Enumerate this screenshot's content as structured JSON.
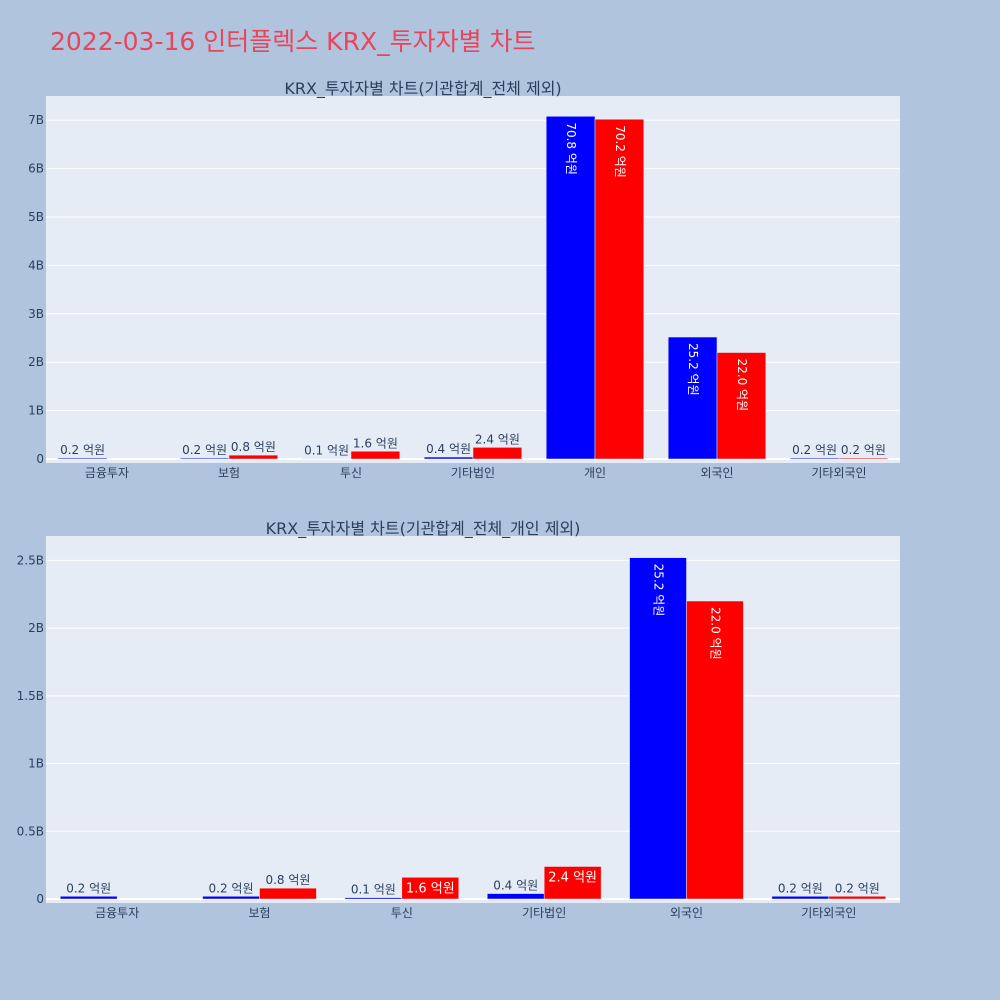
{
  "page_title": "2022-03-16 인터플렉스 KRX_투자자별 차트",
  "colors": {
    "buy": "#0000ff",
    "sell": "#ff0000",
    "background": "#b0c4de",
    "plot_bg": "#e5ecf6"
  },
  "chart_data": [
    {
      "type": "bar",
      "title": "KRX_투자자별 차트(기관합계_전체 제외)",
      "categories": [
        "금융투자",
        "보험",
        "투신",
        "기타법인",
        "개인",
        "외국인",
        "기타외국인"
      ],
      "series": [
        {
          "color": "#0000ff",
          "values": [
            20000000,
            20000000,
            10000000,
            40000000,
            7080000000,
            2520000000,
            20000000
          ],
          "labels": [
            "0.2 억원",
            "0.2 억원",
            "0.1 억원",
            "0.4 억원",
            "70.8 억원",
            "25.2 억원",
            "0.2 억원"
          ]
        },
        {
          "color": "#ff0000",
          "values": [
            0,
            80000000,
            160000000,
            240000000,
            7020000000,
            2200000000,
            20000000
          ],
          "labels": [
            "",
            "0.8 억원",
            "1.6 억원",
            "2.4 억원",
            "70.2 억원",
            "22.0 억원",
            "0.2 억원"
          ]
        }
      ],
      "yticks": [
        0,
        1000000000,
        2000000000,
        3000000000,
        4000000000,
        5000000000,
        6000000000,
        7000000000
      ],
      "ytick_labels": [
        "0",
        "1B",
        "2B",
        "3B",
        "4B",
        "5B",
        "6B",
        "7B"
      ],
      "ylim": [
        0,
        7500000000
      ],
      "grid": true
    },
    {
      "type": "bar",
      "title": "KRX_투자자별 차트(기관합계_전체_개인 제외)",
      "categories": [
        "금융투자",
        "보험",
        "투신",
        "기타법인",
        "외국인",
        "기타외국인"
      ],
      "series": [
        {
          "color": "#0000ff",
          "values": [
            20000000,
            20000000,
            10000000,
            40000000,
            2520000000,
            20000000
          ],
          "labels": [
            "0.2 억원",
            "0.2 억원",
            "0.1 억원",
            "0.4 억원",
            "25.2 억원",
            "0.2 억원"
          ]
        },
        {
          "color": "#ff0000",
          "values": [
            0,
            80000000,
            160000000,
            240000000,
            2200000000,
            20000000
          ],
          "labels": [
            "",
            "0.8 억원",
            "1.6 억원",
            "2.4 억원",
            "22.0 억원",
            "0.2 억원"
          ]
        }
      ],
      "yticks": [
        0,
        500000000,
        1000000000,
        1500000000,
        2000000000,
        2500000000
      ],
      "ytick_labels": [
        "0",
        "0.5B",
        "1B",
        "1.5B",
        "2B",
        "2.5B"
      ],
      "ylim": [
        0,
        2680000000
      ],
      "grid": true
    }
  ]
}
